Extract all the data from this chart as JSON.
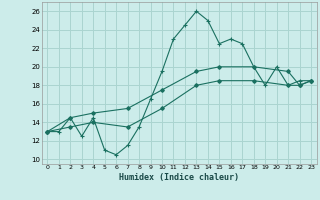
{
  "xlabel": "Humidex (Indice chaleur)",
  "bg_color": "#ccecea",
  "grid_color": "#aad4d0",
  "line_color": "#1a7060",
  "xlim": [
    -0.5,
    23.5
  ],
  "ylim": [
    9.5,
    27.0
  ],
  "xticks": [
    0,
    1,
    2,
    3,
    4,
    5,
    6,
    7,
    8,
    9,
    10,
    11,
    12,
    13,
    14,
    15,
    16,
    17,
    18,
    19,
    20,
    21,
    22,
    23
  ],
  "yticks": [
    10,
    12,
    14,
    16,
    18,
    20,
    22,
    24,
    26
  ],
  "line1_x": [
    0,
    1,
    2,
    3,
    4,
    5,
    6,
    7,
    8,
    9,
    10,
    11,
    12,
    13,
    14,
    15,
    16,
    17,
    18,
    19,
    20,
    21,
    22,
    23
  ],
  "line1_y": [
    13,
    13,
    14.5,
    12.5,
    14.5,
    11,
    10.5,
    11.5,
    13.5,
    16.5,
    19.5,
    23,
    24.5,
    26,
    25,
    22.5,
    23,
    22.5,
    20,
    18,
    20,
    18,
    18.5,
    18.5
  ],
  "line2_x": [
    0,
    2,
    4,
    7,
    10,
    13,
    15,
    18,
    21,
    22,
    23
  ],
  "line2_y": [
    13,
    14.5,
    15,
    15.5,
    17.5,
    19.5,
    20,
    20,
    19.5,
    18,
    18.5
  ],
  "line3_x": [
    0,
    2,
    4,
    7,
    10,
    13,
    15,
    18,
    21,
    22,
    23
  ],
  "line3_y": [
    13,
    13.5,
    14,
    13.5,
    15.5,
    18,
    18.5,
    18.5,
    18,
    18,
    18.5
  ]
}
